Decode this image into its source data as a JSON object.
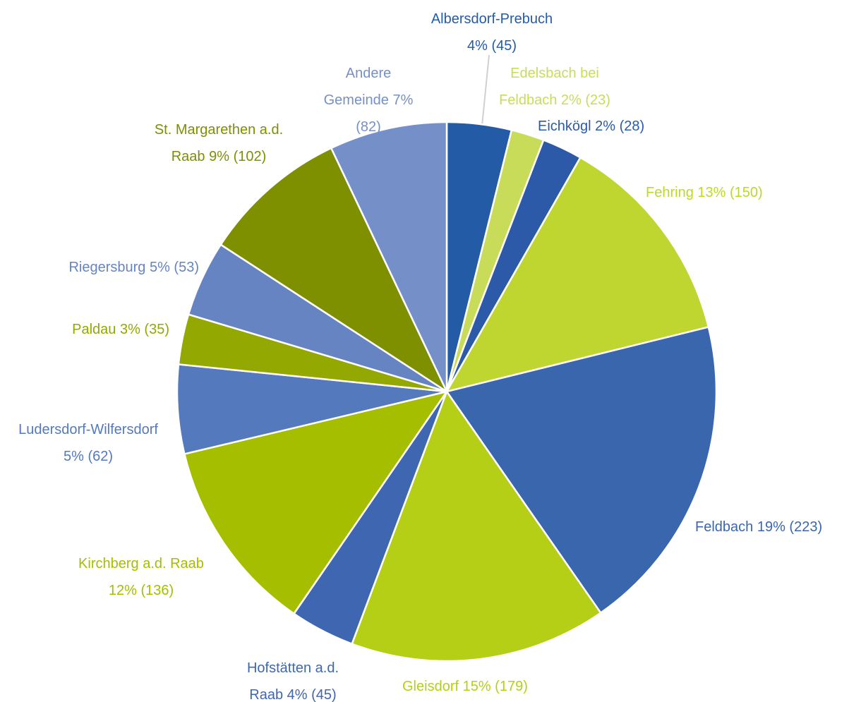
{
  "chart_data": {
    "type": "pie",
    "categories": [
      "Albersdorf-Prebuch",
      "Edelsbach bei Feldbach",
      "Eichkögl",
      "Fehring",
      "Feldbach",
      "Gleisdorf",
      "Hofstätten a.d. Raab",
      "Kirchberg a.d. Raab",
      "Ludersdorf-Wilfersdorf",
      "Paldau",
      "Riegersburg",
      "St. Margarethen a.d. Raab",
      "Andere Gemeinde"
    ],
    "values": [
      45,
      23,
      28,
      150,
      223,
      179,
      45,
      136,
      62,
      35,
      53,
      102,
      82
    ],
    "value_labels": [
      "4% (45)",
      "2% (23)",
      "2% (28)",
      "13% (150)",
      "19% (223)",
      "15% (179)",
      "4% (45)",
      "12% (136)",
      "5% (62)",
      "3% (35)",
      "5% (53)",
      "9% (102)",
      "7% (82)"
    ],
    "colors": [
      "#245ba7",
      "#c9dc5a",
      "#2d5aa8",
      "#bed62f",
      "#3a66ae",
      "#b5cf16",
      "#3f66b0",
      "#a5be00",
      "#5479bd",
      "#93a800",
      "#6683c2",
      "#7e8f00",
      "#7590c9"
    ]
  }
}
